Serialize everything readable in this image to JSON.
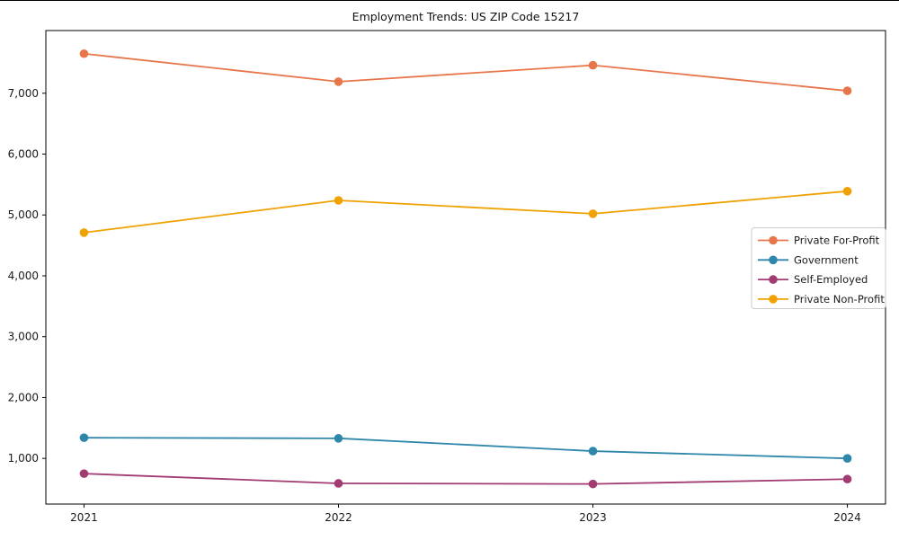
{
  "figure": {
    "background": "#ffffff"
  },
  "chart_data": {
    "type": "line",
    "title": "Employment Trends: US ZIP Code 15217",
    "categories": [
      "2021",
      "2022",
      "2023",
      "2024"
    ],
    "series": [
      {
        "name": "Private For-Profit",
        "color": "#E8764B",
        "values": [
          7650,
          7190,
          7460,
          7040
        ]
      },
      {
        "name": "Government",
        "color": "#2E86AB",
        "values": [
          1340,
          1330,
          1120,
          1000
        ]
      },
      {
        "name": "Self-Employed",
        "color": "#A23B72",
        "values": [
          750,
          590,
          580,
          660
        ]
      },
      {
        "name": "Private Non-Profit",
        "color": "#F0A202",
        "values": [
          4710,
          5240,
          5020,
          5390
        ]
      }
    ],
    "xlabel": "",
    "ylabel": "",
    "ylim": [
      250,
      8030
    ],
    "yticks": [
      1000,
      2000,
      3000,
      4000,
      5000,
      6000,
      7000
    ],
    "ytick_labels": [
      "1,000",
      "2,000",
      "3,000",
      "4,000",
      "5,000",
      "6,000",
      "7,000"
    ],
    "legend_position": "center-right",
    "legend_border_color": "#cccccc",
    "grid": false,
    "axis_color": "#000000",
    "text_color": "#1a1a1a"
  }
}
